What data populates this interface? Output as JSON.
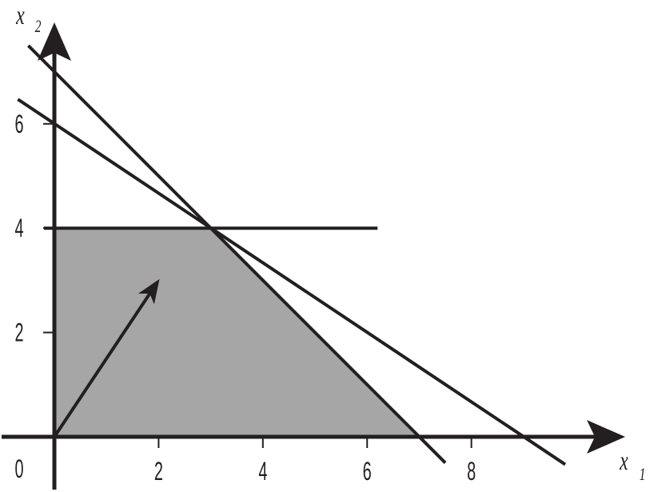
{
  "chart_data": {
    "type": "line",
    "title": "",
    "xlabel": "x",
    "xlabel_sub": "1",
    "ylabel": "x",
    "ylabel_sub": "2",
    "origin_label": "0",
    "xlim": [
      -1,
      11.7
    ],
    "ylim": [
      -0.5,
      7.8
    ],
    "x_ticks": [
      {
        "value": 2,
        "label": "2"
      },
      {
        "value": 4,
        "label": "4"
      },
      {
        "value": 6,
        "label": "6"
      },
      {
        "value": 8,
        "label": "8"
      }
    ],
    "y_ticks": [
      {
        "value": 2,
        "label": "2"
      },
      {
        "value": 4,
        "label": "4"
      },
      {
        "value": 6,
        "label": "6"
      }
    ],
    "grid": false,
    "colors": {
      "line": "#231f20",
      "feasible_region": "#a6a6a6"
    },
    "feasible_region": [
      [
        0,
        0
      ],
      [
        0,
        4
      ],
      [
        3,
        4
      ],
      [
        7,
        0
      ]
    ],
    "series": [
      {
        "points": [
          [
            -0.5,
            7.5
          ],
          [
            7.5,
            -0.5
          ]
        ]
      },
      {
        "points": [
          [
            -0.7,
            6.47
          ],
          [
            9.8,
            -0.53
          ]
        ]
      },
      {
        "points": [
          [
            -0.2,
            4
          ],
          [
            6.2,
            4
          ]
        ]
      }
    ],
    "objective_vector": [
      [
        0,
        0
      ],
      [
        2,
        3
      ]
    ]
  }
}
